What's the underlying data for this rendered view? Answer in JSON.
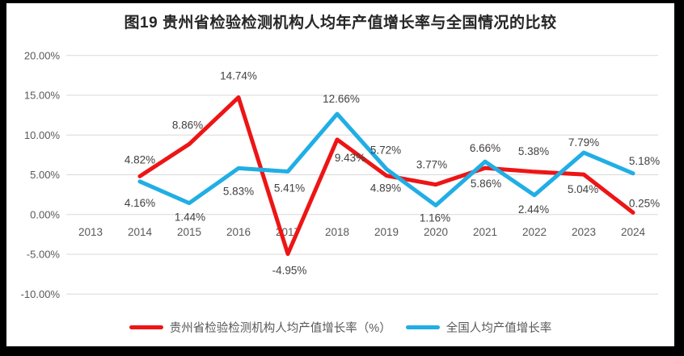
{
  "title": "图19 贵州省检验检测机构人均年产值增长率与全国情况的比较",
  "frame": {
    "background": "#ffffff",
    "border_color": "#000000"
  },
  "chart_data": {
    "type": "line",
    "title": "图19 贵州省检验检测机构人均年产值增长率与全国情况的比较",
    "categories": [
      "2013",
      "2014",
      "2015",
      "2016",
      "2017",
      "2018",
      "2019",
      "2020",
      "2021",
      "2022",
      "2023",
      "2024"
    ],
    "xlabel": "",
    "ylabel": "",
    "ylim": [
      -10,
      20
    ],
    "grid": "horizontal",
    "legend_position": "bottom",
    "y_ticks": [
      {
        "value": 20,
        "label": "20.00%"
      },
      {
        "value": 15,
        "label": "15.00%"
      },
      {
        "value": 10,
        "label": "10.00%"
      },
      {
        "value": 5,
        "label": "5.00%"
      },
      {
        "value": 0,
        "label": "0.00%"
      },
      {
        "value": -5,
        "label": "-5.00%"
      },
      {
        "value": -10,
        "label": "-10.00%"
      }
    ],
    "colors": {
      "grid": "#D9D9D9",
      "axis_text": "#595959",
      "data_label": "#404040"
    },
    "series": [
      {
        "name": "贵州省检验检测机构人均产值增长率（%）",
        "color": "#ED1515",
        "values": [
          null,
          4.82,
          8.86,
          14.74,
          -4.95,
          9.43,
          4.89,
          3.77,
          5.86,
          5.38,
          5.04,
          0.25
        ],
        "labels": [
          null,
          "4.82%",
          "8.86%",
          "14.74%",
          "-4.95%",
          "9.43%",
          "4.89%",
          "3.77%",
          "5.86%",
          "5.38%",
          "5.04%",
          "0.25%"
        ],
        "label_offsets": [
          [
            0,
            0
          ],
          [
            0,
            -16
          ],
          [
            -2,
            -19
          ],
          [
            0,
            -22
          ],
          [
            2,
            25
          ],
          [
            16,
            27
          ],
          [
            -1,
            20
          ],
          [
            -5,
            -20
          ],
          [
            1,
            24
          ],
          [
            -1,
            -21
          ],
          [
            -1,
            23
          ],
          [
            14,
            -7
          ]
        ]
      },
      {
        "name": "全国人均产值增长率",
        "color": "#21AEE5",
        "values": [
          null,
          4.16,
          1.44,
          5.83,
          5.41,
          12.66,
          5.72,
          1.16,
          6.66,
          2.44,
          7.79,
          5.18
        ],
        "labels": [
          null,
          "4.16%",
          "1.44%",
          "5.83%",
          "5.41%",
          "12.66%",
          "5.72%",
          "1.16%",
          "6.66%",
          "2.44%",
          "7.79%",
          "5.18%"
        ],
        "label_offsets": [
          [
            0,
            0
          ],
          [
            0,
            31
          ],
          [
            1,
            22
          ],
          [
            0,
            33
          ],
          [
            2,
            25
          ],
          [
            5,
            -14
          ],
          [
            -1,
            -19
          ],
          [
            -1,
            20
          ],
          [
            0,
            -12
          ],
          [
            -1,
            22
          ],
          [
            0,
            -8
          ],
          [
            14,
            -11
          ]
        ]
      }
    ]
  }
}
